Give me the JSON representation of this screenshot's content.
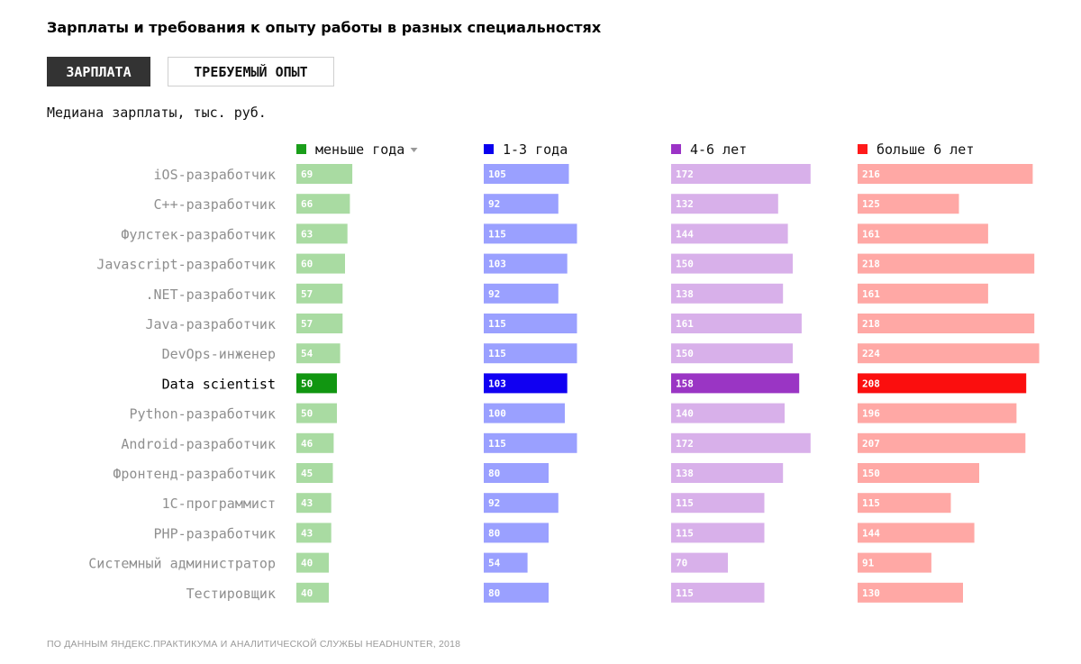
{
  "header": {
    "title": "Зарплаты и требования к опыту работы в разных специальностях",
    "tabs": [
      {
        "label": "ЗАРПЛАТА",
        "active": true
      },
      {
        "label": "ТРЕБУЕМЫЙ ОПЫТ",
        "active": false
      }
    ],
    "subtitle": "Медиана зарплаты, тыс. руб."
  },
  "source": "ПО ДАННЫМ ЯНДЕКС.ПРАКТИКУМА И АНАЛИТИЧЕСКОЙ СЛУЖБЫ HEADHUNTER, 2018",
  "sort_icon": "sort-down-triangle-icon",
  "chart_data": {
    "type": "bar",
    "title": "Медиана зарплаты, тыс. руб.",
    "categories": [
      "iOS-разработчик",
      "C++-разработчик",
      "Фулстек-разработчик",
      "Javascript-разработчик",
      ".NET-разработчик",
      "Java-разработчик",
      "DevOps-инженер",
      "Data scientist",
      "Python-разработчик",
      "Android-разработчик",
      "Фронтенд-разработчик",
      "1С-программист",
      "PHP-разработчик",
      "Системный администратор",
      "Тестировщик"
    ],
    "highlight": "Data scientist",
    "sorted_by": "меньше года",
    "series": [
      {
        "name": "меньше года",
        "color": "#1a9e1a",
        "light_color": "#a9dba2",
        "highlight_color": "#119611",
        "values": [
          69,
          66,
          63,
          60,
          57,
          57,
          54,
          50,
          50,
          46,
          45,
          43,
          43,
          40,
          40
        ]
      },
      {
        "name": "1-3 года",
        "color": "#0a00ee",
        "light_color": "#9aa0ff",
        "highlight_color": "#1100f2",
        "values": [
          105,
          92,
          115,
          103,
          92,
          115,
          115,
          103,
          100,
          115,
          80,
          92,
          80,
          54,
          80
        ]
      },
      {
        "name": "4-6 лет",
        "color": "#9b33c6",
        "light_color": "#d8b0ea",
        "highlight_color": "#9a35c4",
        "values": [
          172,
          132,
          144,
          150,
          138,
          161,
          150,
          158,
          140,
          172,
          138,
          115,
          115,
          70,
          115
        ]
      },
      {
        "name": "больше 6 лет",
        "color": "#ff1a1a",
        "light_color": "#ffa8a5",
        "highlight_color": "#fb0e0e",
        "values": [
          216,
          125,
          161,
          218,
          161,
          218,
          224,
          208,
          196,
          207,
          150,
          115,
          144,
          91,
          130
        ]
      }
    ]
  }
}
